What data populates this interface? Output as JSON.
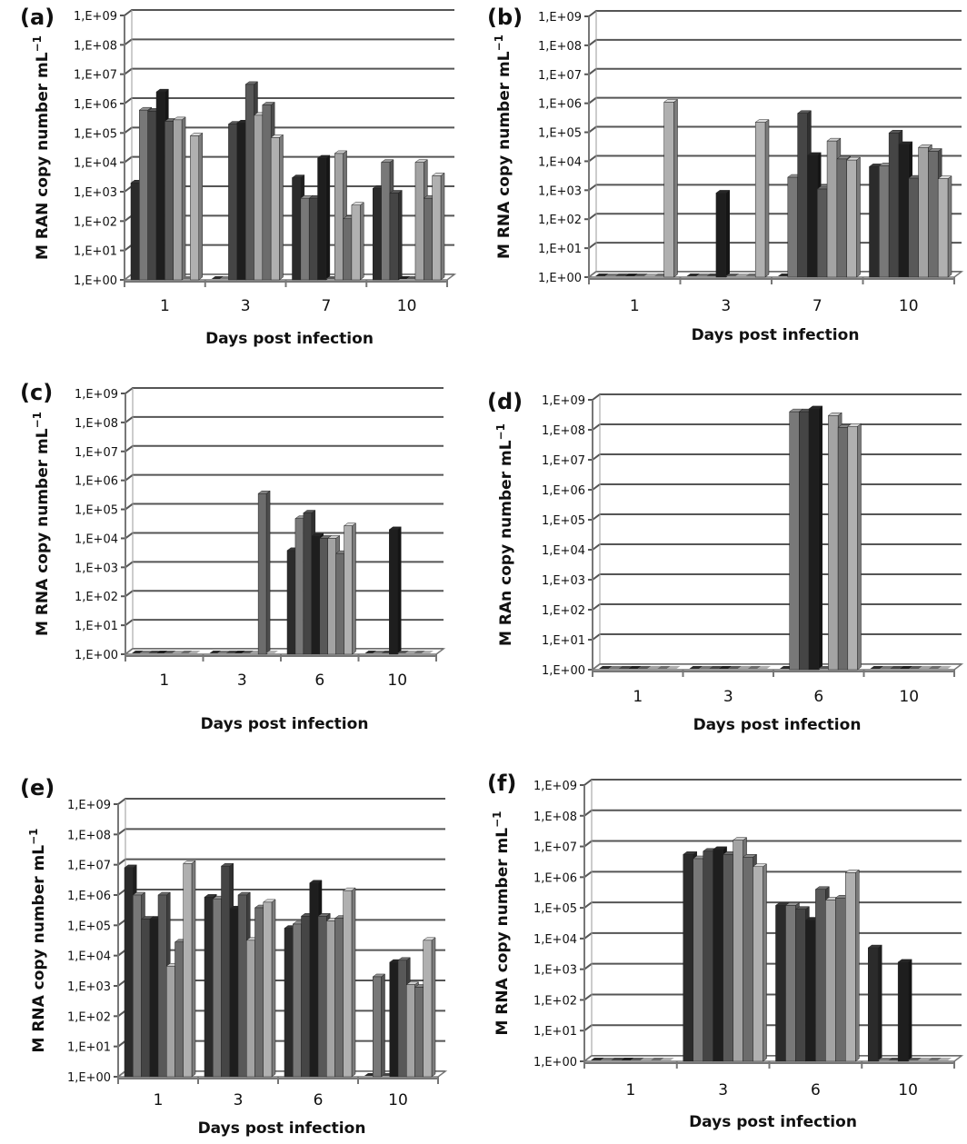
{
  "chart_data": [
    {
      "panel_label": "(a)",
      "type": "bar",
      "yscale": "log",
      "ylim": [
        1,
        1000000000.0
      ],
      "ylabel": "M RAN copy number mL",
      "ylabel_sup": "−1",
      "xlabel": "Days post infection",
      "yticks": [
        "1,E+00",
        "1,E+01",
        "1,E+02",
        "1,E+03",
        "1,E+04",
        "1,E+05",
        "1,E+06",
        "1,E+07",
        "1,E+08",
        "1,E+09"
      ],
      "categories": [
        "1",
        "3",
        "7",
        "10"
      ],
      "groups": [
        [
          2000.0,
          600000.0,
          550000.0,
          2500000.0,
          250000.0,
          280000.0,
          1,
          80000.0
        ],
        [
          1,
          1,
          200000.0,
          220000.0,
          4500000.0,
          400000.0,
          900000.0,
          70000.0
        ],
        [
          3000.0,
          600.0,
          600.0,
          14000.0,
          1,
          20000.0,
          120.0,
          350.0
        ],
        [
          1300.0,
          10000.0,
          900.0,
          1,
          1,
          10000.0,
          600.0,
          3500.0
        ]
      ]
    },
    {
      "panel_label": "(b)",
      "type": "bar",
      "yscale": "log",
      "ylim": [
        1,
        1000000000.0
      ],
      "ylabel": "M RNA copy number mL",
      "ylabel_sup": "−1",
      "xlabel": "Days post infection",
      "yticks": [
        "1,E+00",
        "1,E+01",
        "1,E+02",
        "1,E+03",
        "1,E+04",
        "1,E+05",
        "1,E+06",
        "1,E+07",
        "1,E+08",
        "1,E+09"
      ],
      "categories": [
        "1",
        "3",
        "7",
        "10"
      ],
      "groups": [
        [
          1,
          1,
          1,
          1,
          1,
          1,
          1,
          1100000.0
        ],
        [
          1,
          1,
          1,
          800.0,
          1,
          1,
          1,
          220000.0
        ],
        [
          1,
          2800.0,
          450000.0,
          16000.0,
          1100.0,
          50000.0,
          12000.0,
          11000.0
        ],
        [
          6500.0,
          7000.0,
          95000.0,
          38000.0,
          2600.0,
          30000.0,
          22000.0,
          2500.0
        ]
      ]
    },
    {
      "panel_label": "(c)",
      "type": "bar",
      "yscale": "log",
      "ylim": [
        1,
        1000000000.0
      ],
      "ylabel": "M RNA copy number mL",
      "ylabel_sup": "−1",
      "xlabel": "Days post infection",
      "yticks": [
        "1,E+00",
        "1,E+01",
        "1,E+02",
        "1,E+03",
        "1,E+04",
        "1,E+05",
        "1,E+06",
        "1,E+07",
        "1,E+08",
        "1,E+09"
      ],
      "categories": [
        "1",
        "3",
        "6",
        "10"
      ],
      "groups": [
        [
          1,
          1,
          1,
          1,
          1,
          1,
          1,
          1
        ],
        [
          1,
          1,
          1,
          1,
          1,
          1,
          350000.0,
          1
        ],
        [
          3800.0,
          48000.0,
          75000.0,
          12000.0,
          10000.0,
          10000.0,
          3000.0,
          27000.0
        ],
        [
          1,
          1,
          1,
          20000.0,
          1,
          1,
          1,
          1
        ]
      ]
    },
    {
      "panel_label": "(d)",
      "type": "bar",
      "yscale": "log",
      "ylim": [
        1,
        1000000000.0
      ],
      "ylabel": "M RAn copy number mL",
      "ylabel_sup": "−1",
      "xlabel": "Days post infection",
      "yticks": [
        "1,E+00",
        "1,E+01",
        "1,E+02",
        "1,E+03",
        "1,E+04",
        "1,E+05",
        "1,E+06",
        "1,E+07",
        "1,E+08",
        "1,E+09"
      ],
      "categories": [
        "1",
        "3",
        "6",
        "10"
      ],
      "groups": [
        [
          1,
          1,
          1,
          1,
          1,
          1,
          1,
          1
        ],
        [
          1,
          1,
          1,
          1,
          1,
          1,
          1,
          1
        ],
        [
          1,
          400000000.0,
          400000000.0,
          500000000.0,
          1,
          300000000.0,
          120000000.0,
          130000000.0
        ],
        [
          1,
          1,
          1,
          1,
          1,
          1,
          1,
          1
        ]
      ]
    },
    {
      "panel_label": "(e)",
      "type": "bar",
      "yscale": "log",
      "ylim": [
        1,
        1000000000.0
      ],
      "ylabel": "M RNA copy number  mL",
      "ylabel_sup": "−1",
      "xlabel": "Days post infection",
      "yticks": [
        "1,E+00",
        "1,E+01",
        "1,E+02",
        "1,E+03",
        "1,E+04",
        "1,E+05",
        "1,E+06",
        "1,E+07",
        "1,E+08",
        "1,E+09"
      ],
      "categories": [
        "1",
        "3",
        "6",
        "10"
      ],
      "groups": [
        [
          8000000.0,
          1000000.0,
          160000.0,
          160000.0,
          1000000.0,
          4500.0,
          28000.0,
          11000000.0
        ],
        [
          850000.0,
          750000.0,
          9000000.0,
          350000.0,
          1000000.0,
          32000.0,
          380000.0,
          580000.0
        ],
        [
          80000.0,
          110000.0,
          200000.0,
          2500000.0,
          200000.0,
          140000.0,
          170000.0,
          1400000.0
        ],
        [
          1,
          2000.0,
          1,
          6000.0,
          7000.0,
          1100.0,
          900.0,
          32000.0
        ]
      ]
    },
    {
      "panel_label": "(f)",
      "type": "bar",
      "yscale": "log",
      "ylim": [
        1,
        1000000000.0
      ],
      "ylabel": "M RNA copy number mL",
      "ylabel_sup": "−1",
      "xlabel": "Days post infection",
      "yticks": [
        "1,E+00",
        "1,E+01",
        "1,E+02",
        "1,E+03",
        "1,E+04",
        "1,E+05",
        "1,E+06",
        "1,E+07",
        "1,E+08",
        "1,E+09"
      ],
      "categories": [
        "1",
        "3",
        "6",
        "10"
      ],
      "groups": [
        [
          1,
          1,
          1,
          1,
          1,
          1,
          1,
          1
        ],
        [
          5500000.0,
          4000000.0,
          7000000.0,
          8000000.0,
          5500000.0,
          16000000.0,
          4500000.0,
          2200000.0
        ],
        [
          120000.0,
          120000.0,
          90000.0,
          40000.0,
          400000.0,
          180000.0,
          210000.0,
          1400000.0
        ],
        [
          5000.0,
          1,
          1,
          1700.0,
          1,
          1,
          1,
          1
        ]
      ]
    }
  ],
  "bar_colors": [
    "#2b2b2b",
    "#787878",
    "#454545",
    "#1e1e1e",
    "#585858",
    "#a3a3a3",
    "#6c6c6c",
    "#b0b0b0"
  ],
  "grid": true
}
